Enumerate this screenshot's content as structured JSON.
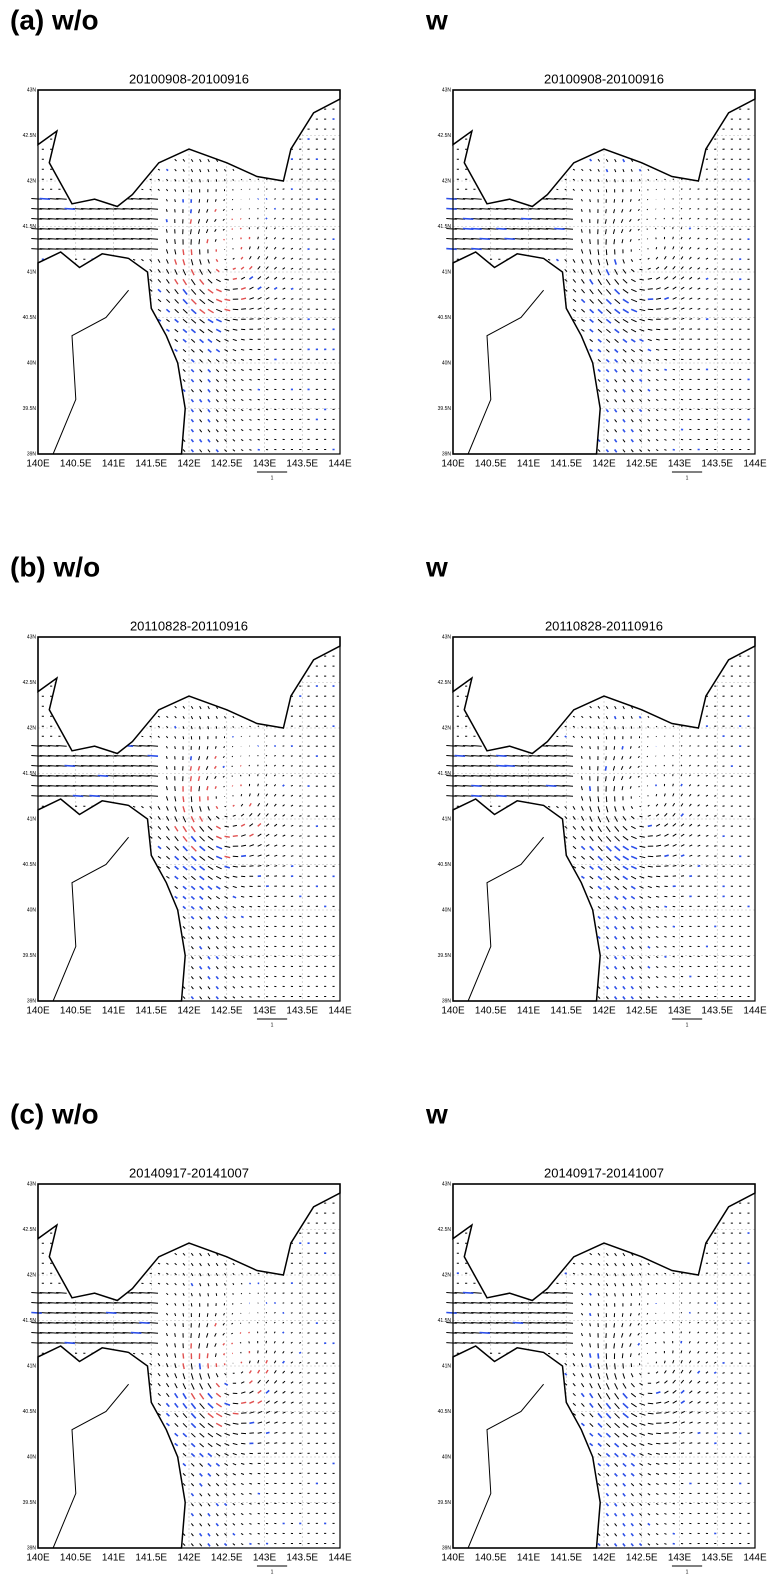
{
  "panels": [
    {
      "label": "(a) w/o",
      "title": "20100908-20100916"
    },
    {
      "label": "w",
      "title": "20100908-20100916"
    },
    {
      "label": "(b) w/o",
      "title": "20110828-20110916"
    },
    {
      "label": "w",
      "title": "20110828-20110916"
    },
    {
      "label": "(c) w/o",
      "title": "20140917-20141007"
    },
    {
      "label": "w",
      "title": "20140917-20141007"
    }
  ],
  "x_axis_labels": [
    "140E",
    "140.5E",
    "141E",
    "141.5E",
    "142E",
    "142.5E",
    "143E",
    "143.5E",
    "144E"
  ],
  "y_axis_labels": [
    "39N",
    "39.5N",
    "40N",
    "40.5N",
    "41N",
    "41.5N",
    "42N",
    "42.5N",
    "43N"
  ],
  "reference_vector_label": "1"
}
